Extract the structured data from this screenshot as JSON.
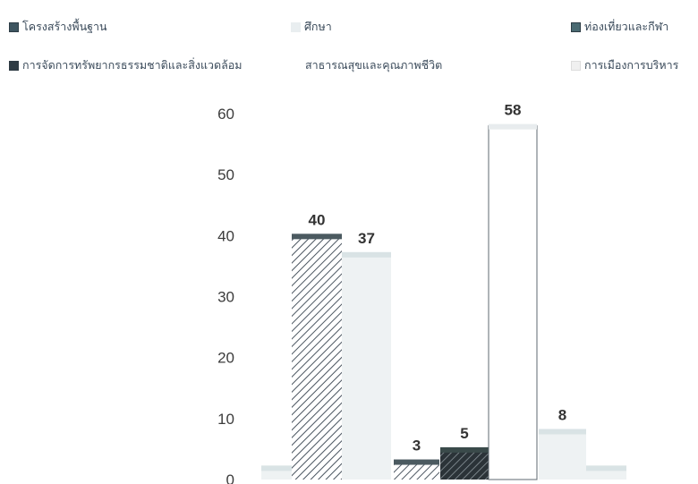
{
  "chart_data": {
    "type": "bar",
    "title": "",
    "xlabel": "",
    "ylabel": "",
    "ylim": [
      0,
      60
    ],
    "yticks": [
      0,
      10,
      20,
      30,
      40,
      50,
      60
    ],
    "grid": false,
    "legend_position": "top",
    "series": [
      {
        "name": "โครงสร้างพื้นฐาน",
        "values": [
          2,
          40,
          3
        ],
        "color": "#4a5a68",
        "fill": "hatch"
      },
      {
        "name": "ศึกษา",
        "values": [
          null,
          37,
          5
        ],
        "color": "#dfe7ea",
        "fill": "light"
      },
      {
        "name": "ท่องเที่ยวและกีฬา",
        "values": [
          null,
          null,
          58
        ],
        "color": "#4a5a68",
        "fill": "hatch"
      },
      {
        "name": "การจัดการทรัพยากรธรรมชาติและสิ่งแวดล้อม",
        "values": [
          null,
          null,
          8
        ],
        "color": "#2f3b44",
        "fill": "crosshatch"
      },
      {
        "name": "สาธารณสุขและคุณภาพชีวิต",
        "values": [
          null,
          null,
          2
        ],
        "color": "#f2f4f6",
        "fill": "light"
      },
      {
        "name": "การเมืองการบริหาร",
        "values": [
          null,
          null,
          null
        ],
        "color": "#eeeeee",
        "fill": "light"
      }
    ],
    "bars": [
      {
        "value": 2,
        "label": "",
        "style": "light"
      },
      {
        "value": 40,
        "label": "40",
        "style": "hatch"
      },
      {
        "value": 37,
        "label": "37",
        "style": "light"
      },
      {
        "value": 3,
        "label": "3",
        "style": "hatch"
      },
      {
        "value": 5,
        "label": "5",
        "style": "crosshatch"
      },
      {
        "value": 58,
        "label": "58",
        "style": "white"
      },
      {
        "value": 8,
        "label": "8",
        "style": "light"
      },
      {
        "value": 2,
        "label": "",
        "style": "light"
      }
    ]
  }
}
